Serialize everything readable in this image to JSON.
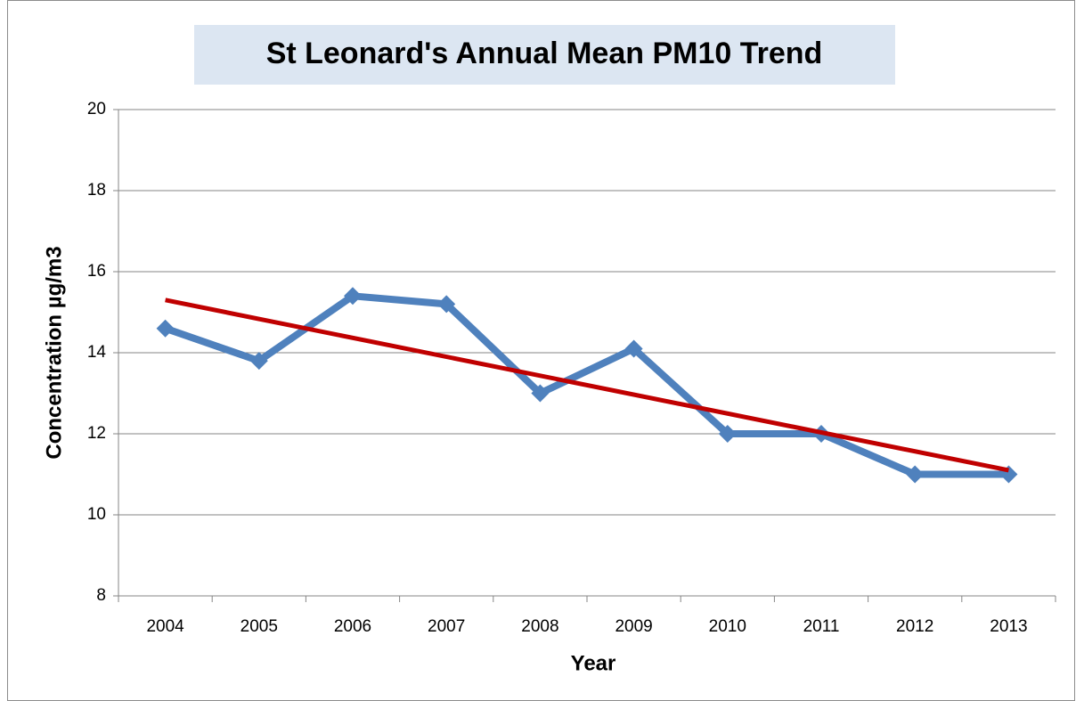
{
  "chart_data": {
    "type": "line",
    "title": "St Leonard's Annual Mean PM10 Trend",
    "x_label": "Year",
    "y_label": "Concentration µg/m3",
    "categories": [
      "2004",
      "2005",
      "2006",
      "2007",
      "2008",
      "2009",
      "2010",
      "2011",
      "2012",
      "2013"
    ],
    "series": [
      {
        "color": "#4f81bd",
        "values": [
          14.6,
          13.8,
          15.4,
          15.2,
          13.0,
          14.1,
          12.0,
          12.0,
          11.0,
          11.0
        ]
      }
    ],
    "trendline": {
      "color": "#c00000",
      "values": [
        15.3,
        11.1
      ]
    },
    "ylim": [
      8,
      20
    ],
    "yticks": [
      8,
      10,
      12,
      14,
      16,
      18,
      20
    ],
    "grid": true
  }
}
